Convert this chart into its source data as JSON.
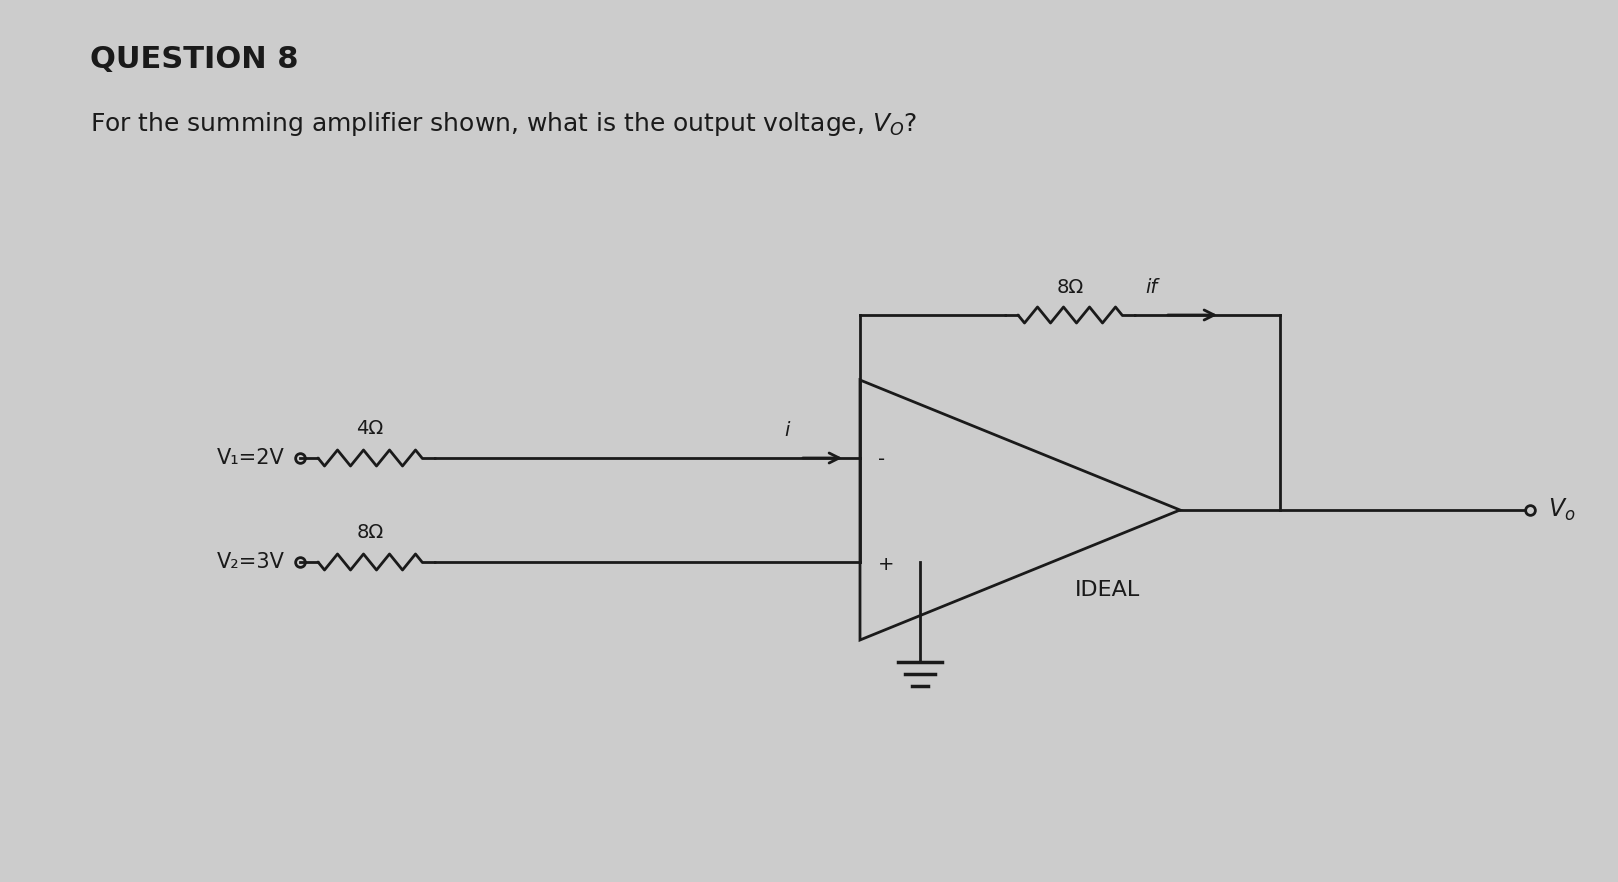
{
  "title": "QUESTION 8",
  "bg_color": "#cccccc",
  "line_color": "#1a1a1a",
  "text_color": "#1a1a1a",
  "title_fontsize": 22,
  "subtitle_fontsize": 18,
  "v1_label": "V₁=2V",
  "v2_label": "V₂=3V",
  "r1_label": "4Ω",
  "r2_label": "8Ω",
  "rf_label": "8Ω",
  "i_label": "i",
  "if_label": "if",
  "vo_label": "V₀",
  "ideal_label": "IDEAL",
  "plus_label": "+",
  "minus_label": "-",
  "lw": 2.0
}
